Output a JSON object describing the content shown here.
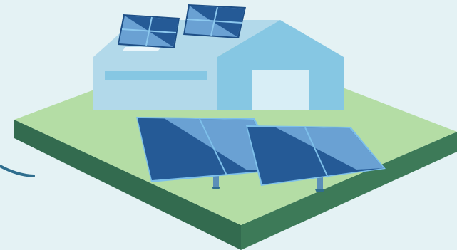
{
  "scene": {
    "colors": {
      "background": "#e4f2f4",
      "ground_top": "#b4dda5",
      "ground_side_left": "#336b4f",
      "ground_side_right": "#3d7a58",
      "building_light": "#b2d9ea",
      "building_mid": "#86c7e3",
      "door": "#d8eef6",
      "panel_dark": "#255a96",
      "panel_light": "#6aa1d3",
      "panel_frame": "#7ec0ea",
      "cable": "#2f6e8e"
    },
    "icons": [
      "house-icon",
      "roof-solar-panel-icon",
      "ground-solar-panel-icon",
      "cable-icon"
    ]
  }
}
